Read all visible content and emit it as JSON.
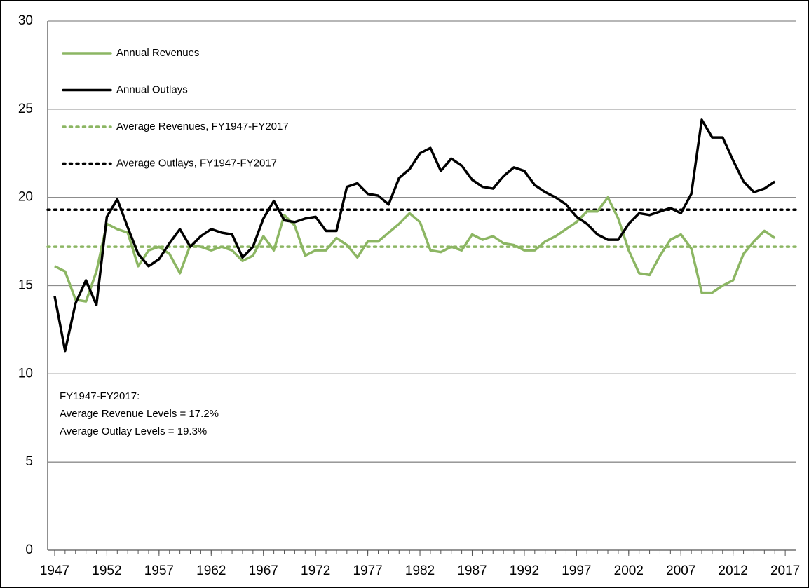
{
  "chart_data": {
    "type": "line",
    "x": [
      1947,
      1948,
      1949,
      1950,
      1951,
      1952,
      1953,
      1954,
      1955,
      1956,
      1957,
      1958,
      1959,
      1960,
      1961,
      1962,
      1963,
      1964,
      1965,
      1966,
      1967,
      1968,
      1969,
      1970,
      1971,
      1972,
      1973,
      1974,
      1975,
      1976,
      1977,
      1978,
      1979,
      1980,
      1981,
      1982,
      1983,
      1984,
      1985,
      1986,
      1987,
      1988,
      1989,
      1990,
      1991,
      1992,
      1993,
      1994,
      1995,
      1996,
      1997,
      1998,
      1999,
      2000,
      2001,
      2002,
      2003,
      2004,
      2005,
      2006,
      2007,
      2008,
      2009,
      2010,
      2011,
      2012,
      2013,
      2014,
      2015,
      2016
    ],
    "series": [
      {
        "name": "Annual Revenues",
        "color": "#8cb663",
        "values": [
          16.1,
          15.8,
          14.2,
          14.1,
          15.8,
          18.5,
          18.2,
          18.0,
          16.1,
          17.0,
          17.2,
          16.8,
          15.7,
          17.3,
          17.2,
          17.0,
          17.2,
          17.0,
          16.4,
          16.7,
          17.8,
          17.0,
          19.0,
          18.4,
          16.7,
          17.0,
          17.0,
          17.7,
          17.3,
          16.6,
          17.5,
          17.5,
          18.0,
          18.5,
          19.1,
          18.6,
          17.0,
          16.9,
          17.2,
          17.0,
          17.9,
          17.6,
          17.8,
          17.4,
          17.3,
          17.0,
          17.0,
          17.5,
          17.8,
          18.2,
          18.6,
          19.2,
          19.2,
          20.0,
          18.8,
          17.0,
          15.7,
          15.6,
          16.7,
          17.6,
          17.9,
          17.1,
          14.6,
          14.6,
          15.0,
          15.3,
          16.8,
          17.5,
          18.1,
          17.7
        ]
      },
      {
        "name": "Annual Outlays",
        "color": "#000000",
        "values": [
          14.4,
          11.3,
          14.0,
          15.3,
          13.9,
          18.9,
          19.9,
          18.3,
          16.8,
          16.1,
          16.5,
          17.4,
          18.2,
          17.2,
          17.8,
          18.2,
          18.0,
          17.9,
          16.6,
          17.2,
          18.8,
          19.8,
          18.7,
          18.6,
          18.8,
          18.9,
          18.1,
          18.1,
          20.6,
          20.8,
          20.2,
          20.1,
          19.6,
          21.1,
          21.6,
          22.5,
          22.8,
          21.5,
          22.2,
          21.8,
          21.0,
          20.6,
          20.5,
          21.2,
          21.7,
          21.5,
          20.7,
          20.3,
          20.0,
          19.6,
          18.9,
          18.5,
          17.9,
          17.6,
          17.6,
          18.5,
          19.1,
          19.0,
          19.2,
          19.4,
          19.1,
          20.2,
          24.4,
          23.4,
          23.4,
          22.1,
          20.9,
          20.3,
          20.5,
          20.9
        ]
      }
    ],
    "reference_lines": [
      {
        "name": "Average Revenues, FY1947-FY2017",
        "color": "#8cb663",
        "value": 17.2
      },
      {
        "name": "Average Outlays, FY1947-FY2017",
        "color": "#000000",
        "value": 19.3
      }
    ],
    "annotation": [
      "FY1947-FY2017:",
      "Average Revenue Levels = 17.2%",
      "Average Outlay Levels = 19.3%"
    ],
    "xlim": [
      1946.33,
      2018
    ],
    "xticks": [
      1947,
      1952,
      1957,
      1962,
      1967,
      1972,
      1977,
      1982,
      1987,
      1992,
      1997,
      2002,
      2007,
      2012,
      2017
    ],
    "ylim": [
      0,
      30
    ],
    "yticks": [
      0,
      5,
      10,
      15,
      20,
      25,
      30
    ],
    "grid": true,
    "legend": "upper left"
  }
}
